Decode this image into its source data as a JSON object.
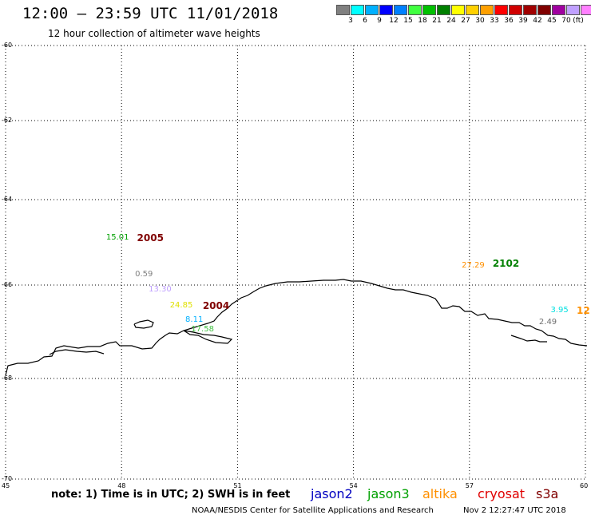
{
  "header": {
    "title": "12:00 – 23:59 UTC 11/01/2018",
    "subtitle": "12 hour collection of altimeter wave heights"
  },
  "colorbar": {
    "unit": "(ft)",
    "colors": [
      "#808080",
      "#00ffff",
      "#00b0ff",
      "#0000ff",
      "#0080ff",
      "#40ff40",
      "#00c000",
      "#008000",
      "#ffff00",
      "#ffd000",
      "#ffa000",
      "#ff0000",
      "#d00000",
      "#a00000",
      "#800000",
      "#a000a0",
      "#c0a0ff",
      "#ff80ff",
      "#000000"
    ],
    "labels": [
      "3",
      "6",
      "9",
      "12",
      "15",
      "18",
      "21",
      "24",
      "27",
      "30",
      "33",
      "36",
      "39",
      "42",
      "45",
      "70"
    ]
  },
  "axes": {
    "lat_labels": [
      "-60",
      "-62",
      "-64",
      "-66",
      "-68",
      "-70"
    ],
    "lat_values": [
      -60,
      -62,
      -64,
      -66,
      -68,
      -70
    ],
    "lon_labels": [
      "45",
      "48",
      "51",
      "54",
      "57",
      "60"
    ],
    "lon_values": [
      45,
      48,
      51,
      54,
      57,
      60
    ]
  },
  "observations": [
    {
      "text": "15.01",
      "lon": 47.6,
      "lat": -64.9,
      "color": "#00a000"
    },
    {
      "text": "0.59",
      "lon": 48.35,
      "lat": -65.75,
      "color": "#808080"
    },
    {
      "text": "13.30",
      "lon": 48.7,
      "lat": -66.1,
      "color": "#c0a0ff"
    },
    {
      "text": "24.85",
      "lon": 49.25,
      "lat": -66.45,
      "color": "#e0e000"
    },
    {
      "text": "8.11",
      "lon": 49.65,
      "lat": -66.75,
      "color": "#00b0ff"
    },
    {
      "text": "17.58",
      "lon": 49.8,
      "lat": -66.95,
      "color": "#40c040"
    },
    {
      "text": "27.29",
      "lon": 56.8,
      "lat": -65.55,
      "color": "#ff9000"
    },
    {
      "text": "3.95",
      "lon": 59.1,
      "lat": -66.55,
      "color": "#00e0e0"
    },
    {
      "text": "2.49",
      "lon": 58.8,
      "lat": -66.8,
      "color": "#707070"
    }
  ],
  "passes": [
    {
      "text": "2005",
      "lon": 48.4,
      "lat": -64.9,
      "color": "#800000"
    },
    {
      "text": "2004",
      "lon": 50.1,
      "lat": -66.45,
      "color": "#800000"
    },
    {
      "text": "2102",
      "lon": 57.6,
      "lat": -65.5,
      "color": "#008000"
    },
    {
      "text": "12",
      "lon": 59.8,
      "lat": -66.55,
      "color": "#ff9000"
    }
  ],
  "footer": {
    "note": "note: 1) Time is in UTC; 2) SWH is in feet",
    "legend": [
      {
        "name": "jason2",
        "color": "#0000c0"
      },
      {
        "name": "jason3",
        "color": "#00a000"
      },
      {
        "name": "altika",
        "color": "#ff9000"
      },
      {
        "name": "cryosat",
        "color": "#e00000"
      },
      {
        "name": "s3a",
        "color": "#800000"
      }
    ],
    "credit": "NOAA/NESDIS Center for Satellite Applications and Research",
    "timestamp": "Nov  2 12:27:47 UTC 2018"
  }
}
